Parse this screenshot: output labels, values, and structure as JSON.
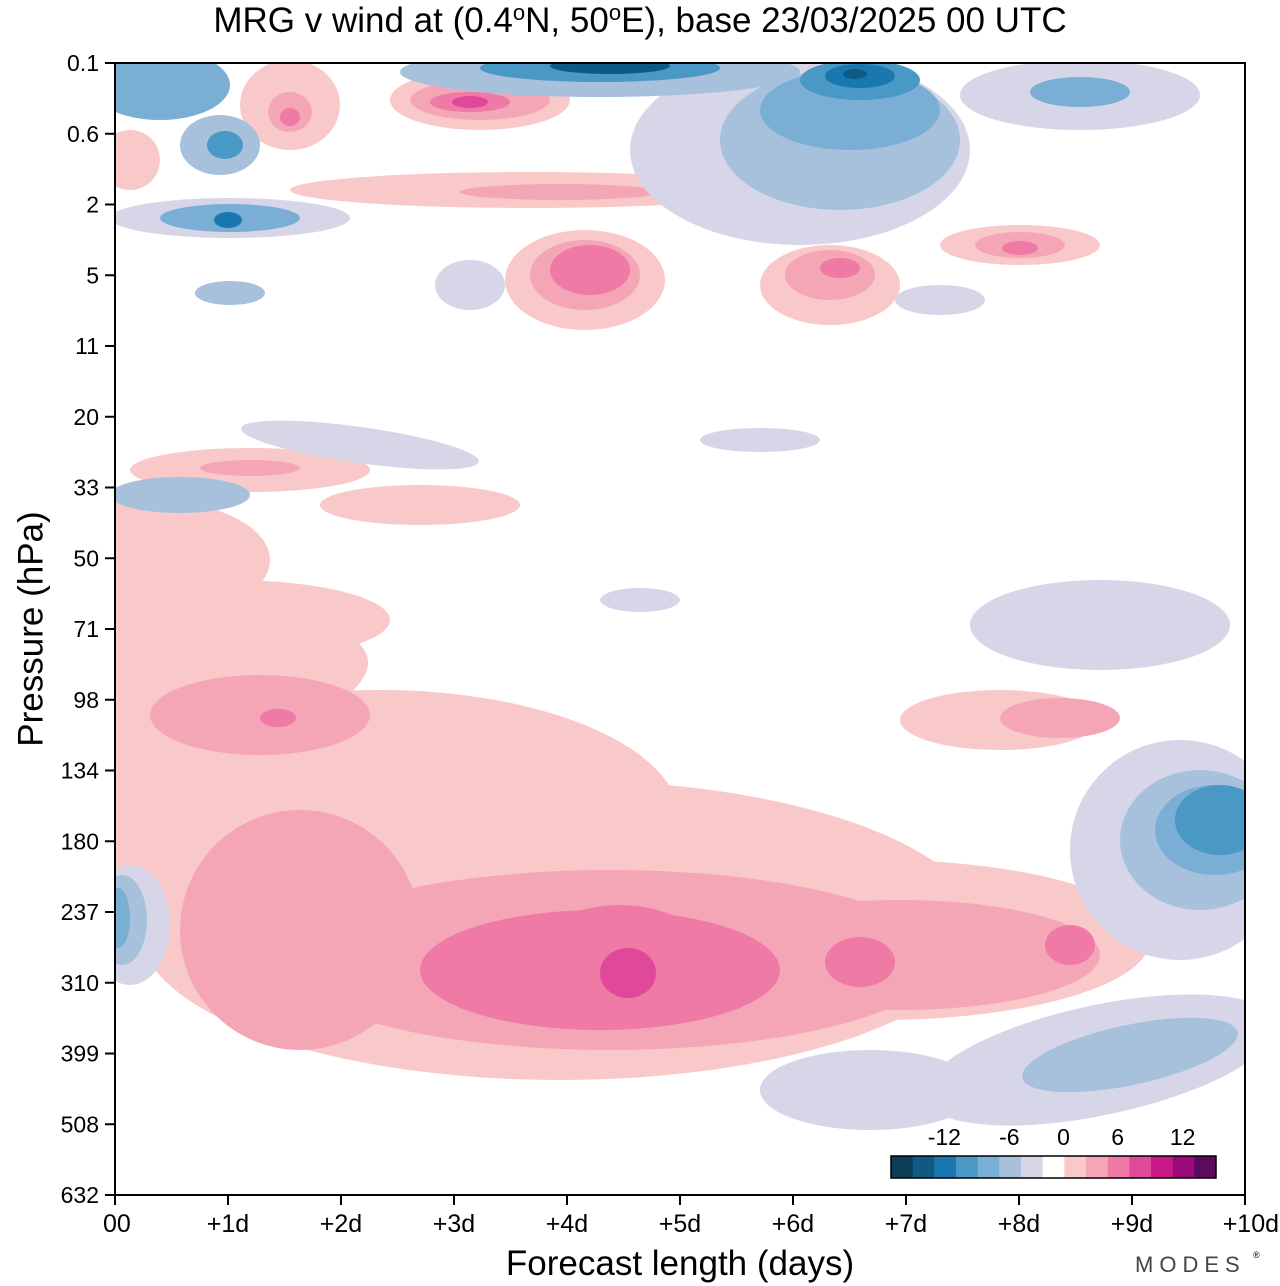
{
  "chart_data": {
    "type": "heatmap",
    "title": "MRG v wind at (0.4°N, 50°E),  base 23/03/2025  00 UTC",
    "title_parts": {
      "a": "MRG v wind at (0.4",
      "b": "N, 50",
      "c": "E),  base 23/03/2025  00 UTC"
    },
    "xlabel": "Forecast length (days)",
    "ylabel": "Pressure (hPa)",
    "x_ticks": [
      "00",
      "+1d",
      "+2d",
      "+3d",
      "+4d",
      "+5d",
      "+6d",
      "+7d",
      "+8d",
      "+9d",
      "+10d"
    ],
    "xlim": [
      0,
      10
    ],
    "y_ticks": [
      "0.1",
      "0.6",
      "2",
      "5",
      "11",
      "20",
      "33",
      "50",
      "71",
      "98",
      "134",
      "180",
      "237",
      "310",
      "399",
      "508",
      "632"
    ],
    "y_scale": "log (pressure, top = 0.1 hPa)",
    "colorbar": {
      "labels": [
        "-12",
        "-6",
        "0",
        "6",
        "12"
      ],
      "levels": [
        -16,
        -14,
        -12,
        -10,
        -8,
        -6,
        -4,
        -2,
        2,
        4,
        6,
        8,
        10,
        12,
        14,
        16
      ],
      "colors": [
        "#0d3d57",
        "#0e5a85",
        "#1a78b0",
        "#4a98c6",
        "#7aaed4",
        "#a7c0dc",
        "#d6d6e8",
        "#ffffff",
        "#f9c9c9",
        "#f5a6b6",
        "#f07aa6",
        "#e0489a",
        "#c81a86",
        "#9a0a7a",
        "#5c0a5e"
      ],
      "placement": "bottom-right, inside plot"
    },
    "features": [
      {
        "sign": "negative",
        "max": -14,
        "day": 4.4,
        "pressure": 0.1
      },
      {
        "sign": "negative",
        "max": -12,
        "day": 6.5,
        "pressure": 0.2
      },
      {
        "sign": "positive",
        "max": 12,
        "day": 3.2,
        "pressure": 0.35
      },
      {
        "sign": "positive",
        "max": 8,
        "day": 1.5,
        "pressure": 0.45
      },
      {
        "sign": "negative",
        "max": -10,
        "day": 1.0,
        "pressure": 2.6
      },
      {
        "sign": "positive",
        "max": 8,
        "day": 4.1,
        "pressure": 5
      },
      {
        "sign": "positive",
        "max": 8,
        "day": 6.5,
        "pressure": 5
      },
      {
        "sign": "positive",
        "max": 8,
        "day": 8.0,
        "pressure": 4
      },
      {
        "sign": "positive",
        "max": 8,
        "day": 4.5,
        "pressure": 310
      },
      {
        "sign": "positive",
        "max": 6,
        "day": 3.5,
        "pressure": 310
      },
      {
        "sign": "positive",
        "max": 6,
        "day": 6.4,
        "pressure": 300
      },
      {
        "sign": "positive",
        "max": 6,
        "day": 8.5,
        "pressure": 270
      },
      {
        "sign": "negative",
        "max": -8,
        "day": 9.7,
        "pressure": 185
      },
      {
        "sign": "negative",
        "max": -6,
        "day": 0.1,
        "pressure": 237
      },
      {
        "sign": "positive",
        "max": 4,
        "day": 1.5,
        "pressure": 105
      },
      {
        "sign": "positive",
        "max": 4,
        "day": 8.5,
        "pressure": 105
      }
    ]
  },
  "branding": {
    "logo": "MODES"
  }
}
